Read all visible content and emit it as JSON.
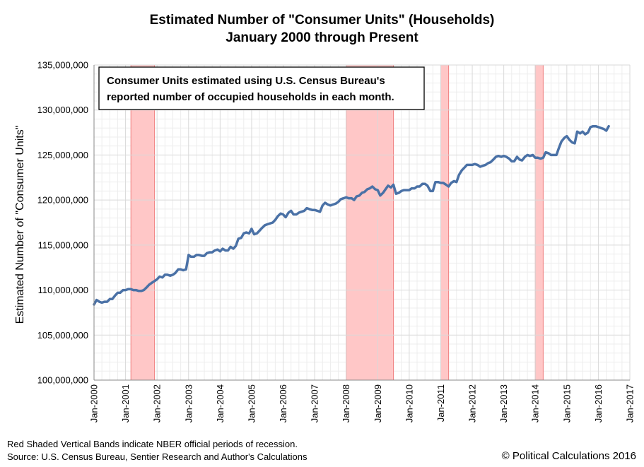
{
  "chart_data": {
    "type": "line",
    "title": "Estimated Number of \"Consumer Units\" (Households)",
    "subtitle": "January 2000 through Present",
    "xlabel": "",
    "ylabel": "Estimated Number of \"Consumer Units\"",
    "xlim": [
      2000.0,
      2017.0
    ],
    "ylim": [
      100000000,
      135000000
    ],
    "y_ticks": [
      100000000,
      105000000,
      110000000,
      115000000,
      120000000,
      125000000,
      130000000,
      135000000
    ],
    "y_tick_labels": [
      "100,000,000",
      "105,000,000",
      "110,000,000",
      "115,000,000",
      "120,000,000",
      "125,000,000",
      "130,000,000",
      "135,000,000"
    ],
    "x_ticks": [
      2000,
      2001,
      2002,
      2003,
      2004,
      2005,
      2006,
      2007,
      2008,
      2009,
      2010,
      2011,
      2012,
      2013,
      2014,
      2015,
      2016,
      2017
    ],
    "x_tick_labels": [
      "Jan-2000",
      "Jan-2001",
      "Jan-2002",
      "Jan-2003",
      "Jan-2004",
      "Jan-2005",
      "Jan-2006",
      "Jan-2007",
      "Jan-2008",
      "Jan-2009",
      "Jan-2010",
      "Jan-2011",
      "Jan-2012",
      "Jan-2013",
      "Jan-2014",
      "Jan-2015",
      "Jan-2016",
      "Jan-2017"
    ],
    "grid": true,
    "annotation": {
      "lines": [
        "Consumer Units estimated using U.S. Census Bureau's",
        "reported number of occupied households in each month."
      ]
    },
    "recessions": [
      {
        "start": 2001.17,
        "end": 2001.92
      },
      {
        "start": 2008.0,
        "end": 2009.5
      },
      {
        "start": 2011.0,
        "end": 2011.25
      },
      {
        "start": 2014.0,
        "end": 2014.25
      }
    ],
    "series": [
      {
        "name": "Consumer Units",
        "color": "#4a71a6",
        "points": [
          [
            2000.0,
            108400000
          ],
          [
            2000.08,
            108900000
          ],
          [
            2000.17,
            108700000
          ],
          [
            2000.25,
            108600000
          ],
          [
            2000.33,
            108700000
          ],
          [
            2000.42,
            108700000
          ],
          [
            2000.5,
            109000000
          ],
          [
            2000.58,
            109000000
          ],
          [
            2000.67,
            109400000
          ],
          [
            2000.75,
            109700000
          ],
          [
            2000.83,
            109700000
          ],
          [
            2000.92,
            110000000
          ],
          [
            2001.0,
            110000000
          ],
          [
            2001.08,
            110100000
          ],
          [
            2001.17,
            110100000
          ],
          [
            2001.25,
            110000000
          ],
          [
            2001.33,
            110000000
          ],
          [
            2001.42,
            109900000
          ],
          [
            2001.5,
            109900000
          ],
          [
            2001.58,
            110000000
          ],
          [
            2001.67,
            110300000
          ],
          [
            2001.75,
            110600000
          ],
          [
            2001.83,
            110800000
          ],
          [
            2001.92,
            111000000
          ],
          [
            2002.0,
            111200000
          ],
          [
            2002.08,
            111500000
          ],
          [
            2002.17,
            111400000
          ],
          [
            2002.25,
            111700000
          ],
          [
            2002.33,
            111700000
          ],
          [
            2002.42,
            111600000
          ],
          [
            2002.5,
            111700000
          ],
          [
            2002.58,
            111900000
          ],
          [
            2002.67,
            112300000
          ],
          [
            2002.75,
            112300000
          ],
          [
            2002.83,
            112200000
          ],
          [
            2002.92,
            112300000
          ],
          [
            2003.0,
            113900000
          ],
          [
            2003.08,
            113700000
          ],
          [
            2003.17,
            113700000
          ],
          [
            2003.25,
            113900000
          ],
          [
            2003.33,
            113900000
          ],
          [
            2003.42,
            113800000
          ],
          [
            2003.5,
            113800000
          ],
          [
            2003.58,
            114100000
          ],
          [
            2003.67,
            114200000
          ],
          [
            2003.75,
            114200000
          ],
          [
            2003.83,
            114400000
          ],
          [
            2003.92,
            114500000
          ],
          [
            2004.0,
            114300000
          ],
          [
            2004.08,
            114600000
          ],
          [
            2004.17,
            114400000
          ],
          [
            2004.25,
            114400000
          ],
          [
            2004.33,
            114800000
          ],
          [
            2004.42,
            114600000
          ],
          [
            2004.5,
            114900000
          ],
          [
            2004.58,
            115700000
          ],
          [
            2004.67,
            115800000
          ],
          [
            2004.75,
            116300000
          ],
          [
            2004.83,
            116400000
          ],
          [
            2004.92,
            116300000
          ],
          [
            2005.0,
            116800000
          ],
          [
            2005.08,
            116200000
          ],
          [
            2005.17,
            116300000
          ],
          [
            2005.25,
            116600000
          ],
          [
            2005.33,
            116900000
          ],
          [
            2005.42,
            117200000
          ],
          [
            2005.5,
            117300000
          ],
          [
            2005.58,
            117400000
          ],
          [
            2005.67,
            117500000
          ],
          [
            2005.75,
            117800000
          ],
          [
            2005.83,
            118200000
          ],
          [
            2005.92,
            118500000
          ],
          [
            2006.0,
            118400000
          ],
          [
            2006.08,
            118100000
          ],
          [
            2006.17,
            118600000
          ],
          [
            2006.25,
            118800000
          ],
          [
            2006.33,
            118400000
          ],
          [
            2006.42,
            118400000
          ],
          [
            2006.5,
            118600000
          ],
          [
            2006.58,
            118700000
          ],
          [
            2006.67,
            118800000
          ],
          [
            2006.75,
            119100000
          ],
          [
            2006.83,
            119000000
          ],
          [
            2006.92,
            118900000
          ],
          [
            2007.0,
            118900000
          ],
          [
            2007.08,
            118800000
          ],
          [
            2007.17,
            118700000
          ],
          [
            2007.25,
            119400000
          ],
          [
            2007.33,
            119700000
          ],
          [
            2007.42,
            119500000
          ],
          [
            2007.5,
            119400000
          ],
          [
            2007.58,
            119500000
          ],
          [
            2007.67,
            119600000
          ],
          [
            2007.75,
            119800000
          ],
          [
            2007.83,
            120100000
          ],
          [
            2007.92,
            120200000
          ],
          [
            2008.0,
            120300000
          ],
          [
            2008.08,
            120200000
          ],
          [
            2008.17,
            120200000
          ],
          [
            2008.25,
            120000000
          ],
          [
            2008.33,
            120400000
          ],
          [
            2008.42,
            120500000
          ],
          [
            2008.5,
            120800000
          ],
          [
            2008.58,
            120900000
          ],
          [
            2008.67,
            121200000
          ],
          [
            2008.75,
            121300000
          ],
          [
            2008.83,
            121500000
          ],
          [
            2008.92,
            121200000
          ],
          [
            2009.0,
            121100000
          ],
          [
            2009.08,
            120500000
          ],
          [
            2009.17,
            120800000
          ],
          [
            2009.25,
            121200000
          ],
          [
            2009.33,
            121600000
          ],
          [
            2009.42,
            121400000
          ],
          [
            2009.5,
            121700000
          ],
          [
            2009.58,
            120700000
          ],
          [
            2009.67,
            120800000
          ],
          [
            2009.75,
            121000000
          ],
          [
            2009.83,
            121100000
          ],
          [
            2009.92,
            121100000
          ],
          [
            2010.0,
            121100000
          ],
          [
            2010.08,
            121300000
          ],
          [
            2010.17,
            121300000
          ],
          [
            2010.25,
            121500000
          ],
          [
            2010.33,
            121500000
          ],
          [
            2010.42,
            121800000
          ],
          [
            2010.5,
            121800000
          ],
          [
            2010.58,
            121600000
          ],
          [
            2010.67,
            121000000
          ],
          [
            2010.75,
            121000000
          ],
          [
            2010.83,
            122000000
          ],
          [
            2010.92,
            122000000
          ],
          [
            2011.0,
            121900000
          ],
          [
            2011.08,
            121900000
          ],
          [
            2011.17,
            121700000
          ],
          [
            2011.25,
            121500000
          ],
          [
            2011.33,
            121900000
          ],
          [
            2011.42,
            122100000
          ],
          [
            2011.5,
            122000000
          ],
          [
            2011.58,
            122800000
          ],
          [
            2011.67,
            123300000
          ],
          [
            2011.75,
            123600000
          ],
          [
            2011.83,
            123900000
          ],
          [
            2011.92,
            123900000
          ],
          [
            2012.0,
            123900000
          ],
          [
            2012.08,
            124000000
          ],
          [
            2012.17,
            123900000
          ],
          [
            2012.25,
            123700000
          ],
          [
            2012.33,
            123800000
          ],
          [
            2012.42,
            123900000
          ],
          [
            2012.5,
            124100000
          ],
          [
            2012.58,
            124200000
          ],
          [
            2012.67,
            124500000
          ],
          [
            2012.75,
            124800000
          ],
          [
            2012.83,
            124900000
          ],
          [
            2012.92,
            124800000
          ],
          [
            2013.0,
            124900000
          ],
          [
            2013.08,
            124800000
          ],
          [
            2013.17,
            124600000
          ],
          [
            2013.25,
            124300000
          ],
          [
            2013.33,
            124300000
          ],
          [
            2013.42,
            124800000
          ],
          [
            2013.5,
            124500000
          ],
          [
            2013.58,
            124400000
          ],
          [
            2013.67,
            124800000
          ],
          [
            2013.75,
            125000000
          ],
          [
            2013.83,
            124900000
          ],
          [
            2013.92,
            125000000
          ],
          [
            2014.0,
            124700000
          ],
          [
            2014.08,
            124700000
          ],
          [
            2014.17,
            124600000
          ],
          [
            2014.25,
            124700000
          ],
          [
            2014.33,
            125300000
          ],
          [
            2014.42,
            125200000
          ],
          [
            2014.5,
            125000000
          ],
          [
            2014.58,
            125000000
          ],
          [
            2014.67,
            125000000
          ],
          [
            2014.75,
            125800000
          ],
          [
            2014.83,
            126500000
          ],
          [
            2014.92,
            126900000
          ],
          [
            2015.0,
            127100000
          ],
          [
            2015.08,
            126700000
          ],
          [
            2015.17,
            126400000
          ],
          [
            2015.25,
            126300000
          ],
          [
            2015.33,
            127600000
          ],
          [
            2015.42,
            127400000
          ],
          [
            2015.5,
            127600000
          ],
          [
            2015.58,
            127300000
          ],
          [
            2015.67,
            127500000
          ],
          [
            2015.75,
            128100000
          ],
          [
            2015.83,
            128200000
          ],
          [
            2015.92,
            128200000
          ],
          [
            2016.0,
            128100000
          ],
          [
            2016.08,
            128000000
          ],
          [
            2016.17,
            127900000
          ],
          [
            2016.25,
            127700000
          ],
          [
            2016.33,
            128200000
          ]
        ]
      }
    ]
  },
  "footer": {
    "note_line1": "Red Shaded Vertical Bands indicate NBER official periods of recession.",
    "note_line2": "Source: U.S. Census Bureau, Sentier Research and Author's Calculations",
    "copyright": "© Political Calculations 2016"
  },
  "colors": {
    "line": "#4a71a6",
    "recession_fill": "#ffc7c7",
    "recession_edge": "#f08080",
    "grid_major": "#d9d9d9",
    "grid_minor": "#ededed"
  }
}
